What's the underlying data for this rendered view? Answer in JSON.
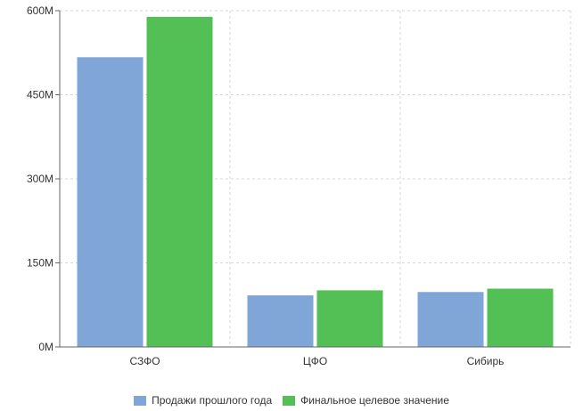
{
  "chart_data": {
    "type": "bar",
    "categories": [
      "СЗФО",
      "ЦФО",
      "Сибирь"
    ],
    "series": [
      {
        "name": "Продажи прошлого года",
        "values": [
          517,
          92,
          98
        ],
        "color": "#7fa6d6"
      },
      {
        "name": "Финальное целевое значение",
        "values": [
          589,
          101,
          104
        ],
        "color": "#52c055"
      }
    ],
    "y_ticks": [
      "0M",
      "150M",
      "300M",
      "450M",
      "600M"
    ],
    "ylim": [
      0,
      600
    ],
    "grid": true,
    "legend_position": "bottom-center"
  }
}
